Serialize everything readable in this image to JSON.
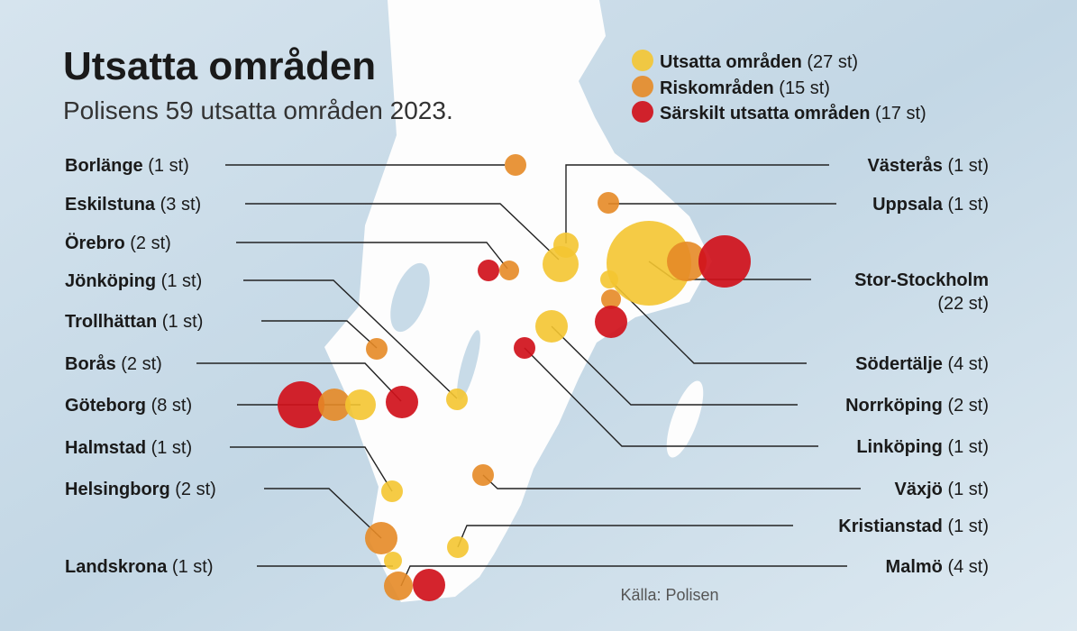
{
  "header": {
    "title": "Utsatta områden",
    "subtitle": "Polisens 59 utsatta områden 2023."
  },
  "legend": [
    {
      "label": "Utsatta områden",
      "count": "(27 st)"
    },
    {
      "label": "Riskområden",
      "count": "(15 st)"
    },
    {
      "label": "Särskilt utsatta områden",
      "count": "(17 st)"
    }
  ],
  "cities_left": [
    {
      "name": "Borlänge",
      "count": "(1 st)"
    },
    {
      "name": "Eskilstuna",
      "count": "(3 st)"
    },
    {
      "name": "Örebro",
      "count": "(2 st)"
    },
    {
      "name": "Jönköping",
      "count": "(1 st)"
    },
    {
      "name": "Trollhättan",
      "count": "(1 st)"
    },
    {
      "name": "Borås",
      "count": "(2 st)"
    },
    {
      "name": "Göteborg",
      "count": "(8 st)"
    },
    {
      "name": "Halmstad",
      "count": "(1 st)"
    },
    {
      "name": "Helsingborg",
      "count": "(2 st)"
    },
    {
      "name": "Landskrona",
      "count": "(1 st)"
    }
  ],
  "cities_right": [
    {
      "name": "Västerås",
      "count": "(1 st)"
    },
    {
      "name": "Uppsala",
      "count": "(1 st)"
    },
    {
      "name": "Stor-Stockholm",
      "count": "(22 st)"
    },
    {
      "name": "Södertälje",
      "count": "(4 st)"
    },
    {
      "name": "Norrköping",
      "count": "(2 st)"
    },
    {
      "name": "Linköping",
      "count": "(1 st)"
    },
    {
      "name": "Växjö",
      "count": "(1 st)"
    },
    {
      "name": "Kristianstad",
      "count": "(1 st)"
    },
    {
      "name": "Malmö",
      "count": "(4 st)"
    }
  ],
  "source": "Källa: Polisen"
}
